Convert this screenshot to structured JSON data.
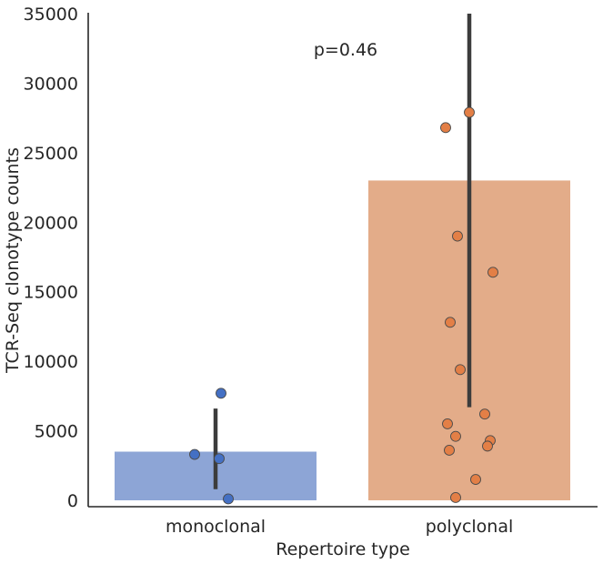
{
  "chart_data": {
    "type": "bar",
    "categories": [
      "monoclonal",
      "polyclonal"
    ],
    "values": [
      3500,
      23000
    ],
    "error_bars": [
      {
        "low": 800,
        "high": 6600
      },
      {
        "low": 6700,
        "high": 35000
      }
    ],
    "points": [
      {
        "category": "monoclonal",
        "values": [
          7700,
          3300,
          3000,
          100
        ]
      },
      {
        "category": "polyclonal",
        "values": [
          27900,
          26800,
          19000,
          16400,
          12800,
          9400,
          6200,
          5500,
          4600,
          4300,
          3900,
          3600,
          1500,
          200
        ]
      }
    ],
    "xlabel": "Repertoire type",
    "ylabel": "TCR-Seq clonotype counts",
    "yticks": [
      "0",
      "5000",
      "10000",
      "15000",
      "20000",
      "25000",
      "30000",
      "35000"
    ],
    "ylim": [
      -500,
      35000
    ],
    "annotation": "p=0.46",
    "grid": false,
    "colors": {
      "bar_monoclonal": "#8da5d6",
      "bar_polyclonal": "#e3ac89",
      "point_monoclonal": "#4470c4",
      "point_polyclonal": "#e37f46",
      "error_bar": "#3c3c3c",
      "axis": "#262626"
    }
  }
}
